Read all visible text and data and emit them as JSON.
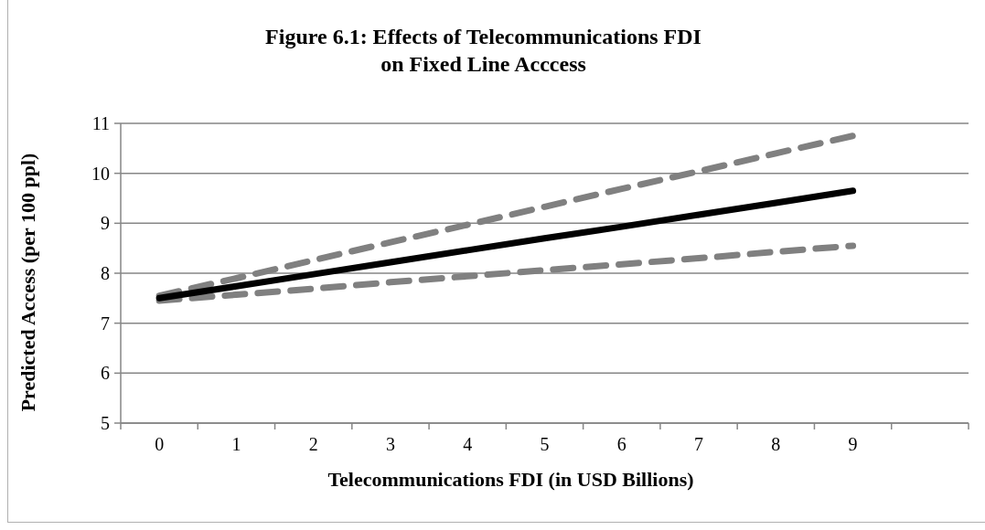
{
  "chart_data": {
    "type": "line",
    "title": "Figure 6.1: Effects of Telecommunications FDI on Fixed Line  Acccess",
    "xlabel": "Telecommunications FDI (in USD Billions)",
    "ylabel": "Predicted  Access (per 100 ppl)",
    "categories": [
      "0",
      "1",
      "2",
      "3",
      "4",
      "5",
      "6",
      "7",
      "8",
      "9",
      null
    ],
    "series": [
      {
        "color": "#808080",
        "line_style": "dashed",
        "values": [
          7.55,
          7.9,
          8.26,
          8.62,
          8.97,
          9.33,
          9.69,
          10.04,
          10.4,
          10.75,
          null
        ]
      },
      {
        "color": "#808080",
        "line_style": "dashed",
        "values": [
          7.45,
          7.57,
          7.69,
          7.82,
          7.94,
          8.06,
          8.18,
          8.3,
          8.43,
          8.55,
          null
        ]
      },
      {
        "color": "#000000",
        "line_style": "solid",
        "values": [
          7.5,
          7.74,
          7.98,
          8.22,
          8.46,
          8.7,
          8.93,
          9.17,
          9.41,
          9.65,
          null
        ]
      }
    ],
    "ylim": [
      5,
      11
    ],
    "yticks": [
      5,
      6,
      7,
      8,
      9,
      10,
      11
    ],
    "grid": "y"
  }
}
